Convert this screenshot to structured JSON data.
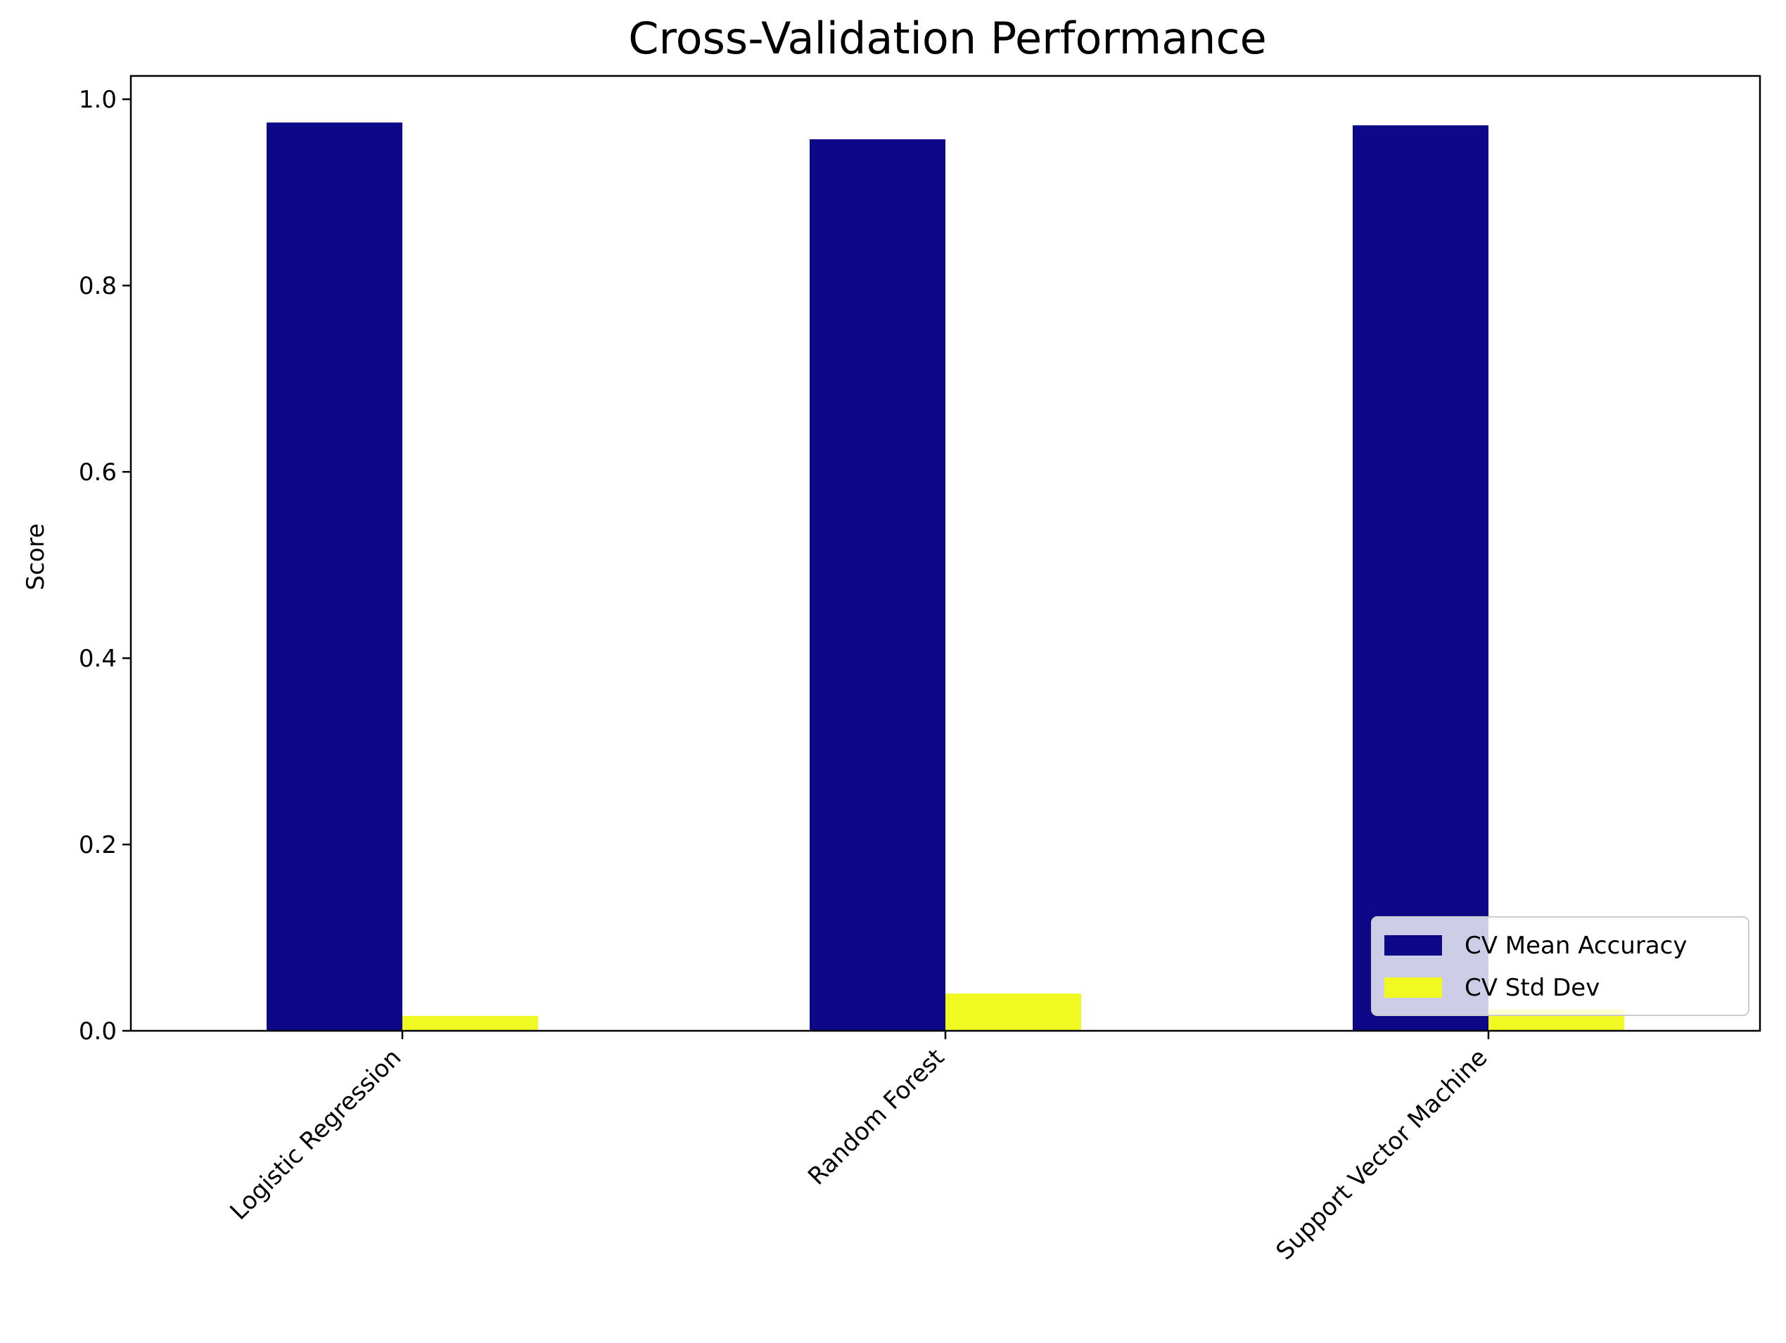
{
  "chart_data": {
    "type": "bar",
    "title": "Cross-Validation Performance",
    "xlabel": "",
    "ylabel": "Score",
    "categories": [
      "Logistic Regression",
      "Random Forest",
      "Support Vector Machine"
    ],
    "series": [
      {
        "name": "CV Mean Accuracy",
        "color": "#0d0887",
        "values": [
          0.975,
          0.957,
          0.972
        ]
      },
      {
        "name": "CV Std Dev",
        "color": "#f0f921",
        "values": [
          0.016,
          0.04,
          0.023
        ]
      }
    ],
    "ylim": [
      0,
      1.025
    ],
    "yticks": [
      "0.0",
      "0.2",
      "0.4",
      "0.6",
      "0.8",
      "1.0"
    ],
    "grid": false,
    "legend_position": "lower-right",
    "xtick_rotation": 45
  }
}
